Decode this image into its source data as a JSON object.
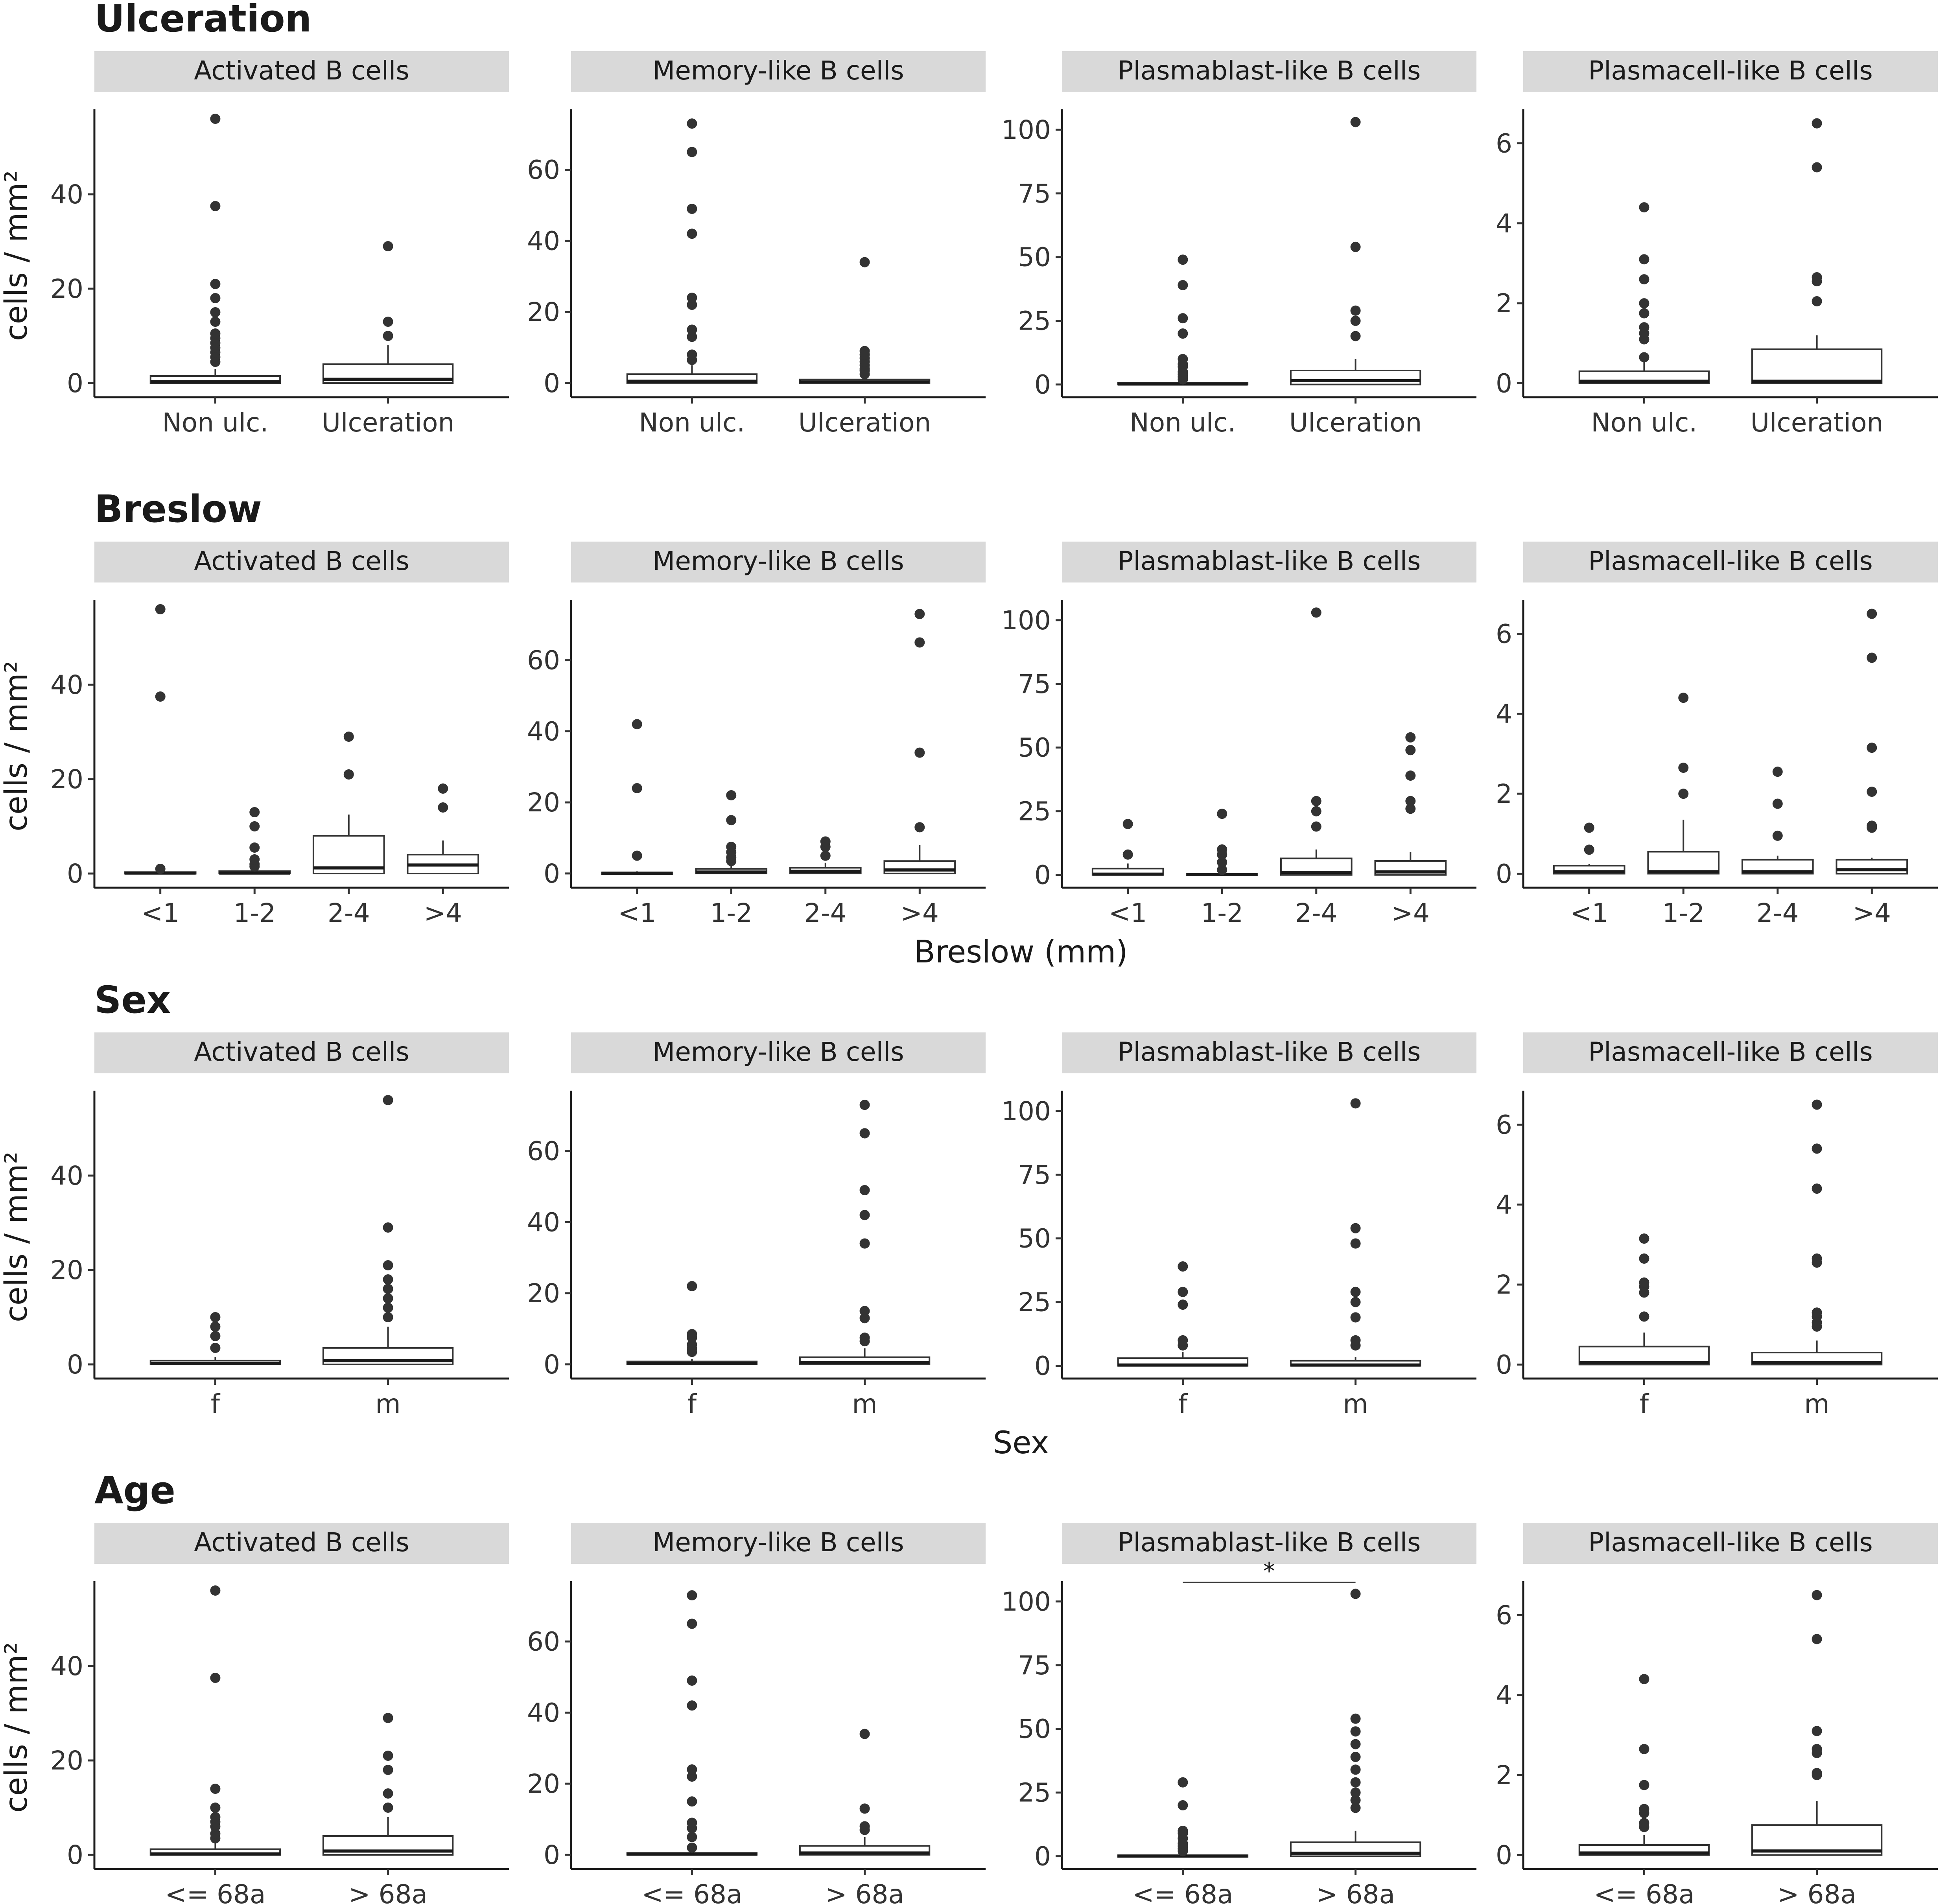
{
  "y_axis_title": "cells / mm²",
  "chart_data": [
    {
      "type": "box",
      "title": "Ulceration",
      "xlabel": "",
      "ylabel": "cells / mm²",
      "categories": [
        "Non ulc.",
        "Ulceration"
      ],
      "panels": [
        {
          "label": "Activated B cells",
          "ylim": [
            -3,
            58
          ],
          "yticks": [
            0,
            20,
            40
          ],
          "boxes": [
            {
              "q1": 0,
              "median": 0.3,
              "q3": 1.5,
              "lower": 0,
              "upper": 3,
              "outliers": [
                4.5,
                5.5,
                6.5,
                7.5,
                8.5,
                9.5,
                10.5,
                13,
                15,
                18,
                21,
                37.5,
                56
              ]
            },
            {
              "q1": 0,
              "median": 0.8,
              "q3": 4,
              "lower": 0,
              "upper": 8,
              "outliers": [
                10,
                13,
                29
              ]
            }
          ]
        },
        {
          "label": "Memory-like B cells",
          "ylim": [
            -4,
            77
          ],
          "yticks": [
            0,
            20,
            40,
            60
          ],
          "boxes": [
            {
              "q1": 0,
              "median": 0.5,
              "q3": 2.5,
              "lower": 0,
              "upper": 5,
              "outliers": [
                6.5,
                8,
                13,
                15,
                22,
                24,
                42,
                49,
                65,
                73
              ]
            },
            {
              "q1": 0,
              "median": 0.3,
              "q3": 1,
              "lower": 0,
              "upper": 2,
              "outliers": [
                2.5,
                3.5,
                4,
                5,
                6,
                7,
                8,
                9,
                34
              ]
            }
          ]
        },
        {
          "label": "Plasmablast-like B cells",
          "ylim": [
            -5,
            108
          ],
          "yticks": [
            0,
            25,
            50,
            75,
            100
          ],
          "boxes": [
            {
              "q1": 0,
              "median": 0.2,
              "q3": 0.6,
              "lower": 0,
              "upper": 1.5,
              "outliers": [
                2,
                3,
                4,
                5,
                7,
                8,
                10,
                20,
                26,
                39,
                49
              ]
            },
            {
              "q1": 0,
              "median": 1.5,
              "q3": 5.5,
              "lower": 0,
              "upper": 10,
              "outliers": [
                19,
                25,
                29,
                54,
                103
              ]
            }
          ]
        },
        {
          "label": "Plasmacell-like B cells",
          "ylim": [
            -0.35,
            6.85
          ],
          "yticks": [
            0,
            2,
            4,
            6
          ],
          "boxes": [
            {
              "q1": 0,
              "median": 0.05,
              "q3": 0.3,
              "lower": 0,
              "upper": 0.55,
              "outliers": [
                0.65,
                1.1,
                1.25,
                1.4,
                1.75,
                2,
                2.6,
                3.1,
                4.4
              ]
            },
            {
              "q1": 0,
              "median": 0.05,
              "q3": 0.85,
              "lower": 0,
              "upper": 1.2,
              "outliers": [
                2.05,
                2.55,
                2.65,
                5.4,
                6.5
              ]
            }
          ]
        }
      ]
    },
    {
      "type": "box",
      "title": "Breslow",
      "xlabel": "Breslow (mm)",
      "ylabel": "cells / mm²",
      "categories": [
        "<1",
        "1-2",
        "2-4",
        ">4"
      ],
      "panels": [
        {
          "label": "Activated B cells",
          "ylim": [
            -3,
            58
          ],
          "yticks": [
            0,
            20,
            40
          ],
          "boxes": [
            {
              "q1": 0,
              "median": 0.1,
              "q3": 0.3,
              "lower": 0,
              "upper": 0.6,
              "outliers": [
                1,
                37.5,
                56
              ]
            },
            {
              "q1": 0,
              "median": 0.1,
              "q3": 0.5,
              "lower": 0,
              "upper": 1,
              "outliers": [
                1.5,
                2,
                3,
                5.5,
                10,
                13
              ]
            },
            {
              "q1": 0,
              "median": 1.2,
              "q3": 8,
              "lower": 0,
              "upper": 12.5,
              "outliers": [
                21,
                29
              ]
            },
            {
              "q1": 0,
              "median": 1.8,
              "q3": 4,
              "lower": 0,
              "upper": 7,
              "outliers": [
                14,
                18
              ]
            }
          ]
        },
        {
          "label": "Memory-like B cells",
          "ylim": [
            -4,
            77
          ],
          "yticks": [
            0,
            20,
            40,
            60
          ],
          "boxes": [
            {
              "q1": 0,
              "median": 0.1,
              "q3": 0.3,
              "lower": 0,
              "upper": 0.6,
              "outliers": [
                5,
                24,
                42
              ]
            },
            {
              "q1": 0,
              "median": 0.4,
              "q3": 1.3,
              "lower": 0,
              "upper": 2.5,
              "outliers": [
                3.5,
                4.5,
                6,
                7.5,
                15,
                22
              ]
            },
            {
              "q1": 0,
              "median": 0.6,
              "q3": 1.6,
              "lower": 0,
              "upper": 3,
              "outliers": [
                5,
                7.5,
                9
              ]
            },
            {
              "q1": 0,
              "median": 1,
              "q3": 3.5,
              "lower": 0,
              "upper": 8,
              "outliers": [
                13,
                34,
                65,
                73
              ]
            }
          ]
        },
        {
          "label": "Plasmablast-like B cells",
          "ylim": [
            -5,
            108
          ],
          "yticks": [
            0,
            25,
            50,
            75,
            100
          ],
          "boxes": [
            {
              "q1": 0,
              "median": 0.3,
              "q3": 2.5,
              "lower": 0,
              "upper": 4.5,
              "outliers": [
                8,
                20
              ]
            },
            {
              "q1": 0,
              "median": 0.1,
              "q3": 0.5,
              "lower": 0,
              "upper": 1,
              "outliers": [
                2,
                5,
                8,
                10,
                24
              ]
            },
            {
              "q1": 0,
              "median": 1,
              "q3": 6.5,
              "lower": 0,
              "upper": 10,
              "outliers": [
                19,
                25,
                29,
                103
              ]
            },
            {
              "q1": 0,
              "median": 1.2,
              "q3": 5.5,
              "lower": 0,
              "upper": 9,
              "outliers": [
                26,
                29,
                39,
                49,
                54
              ]
            }
          ]
        },
        {
          "label": "Plasmacell-like B cells",
          "ylim": [
            -0.35,
            6.85
          ],
          "yticks": [
            0,
            2,
            4,
            6
          ],
          "boxes": [
            {
              "q1": 0,
              "median": 0.05,
              "q3": 0.2,
              "lower": 0,
              "upper": 0.25,
              "outliers": [
                0.6,
                1.15
              ]
            },
            {
              "q1": 0,
              "median": 0.05,
              "q3": 0.55,
              "lower": 0,
              "upper": 1.35,
              "outliers": [
                2,
                2.65,
                4.4
              ]
            },
            {
              "q1": 0,
              "median": 0.05,
              "q3": 0.35,
              "lower": 0,
              "upper": 0.45,
              "outliers": [
                0.95,
                1.75,
                2.55
              ]
            },
            {
              "q1": 0,
              "median": 0.1,
              "q3": 0.35,
              "lower": 0,
              "upper": 0.4,
              "outliers": [
                1.15,
                1.2,
                2.05,
                3.15,
                5.4,
                6.5
              ]
            }
          ]
        }
      ]
    },
    {
      "type": "box",
      "title": "Sex",
      "xlabel": "Sex",
      "ylabel": "cells / mm²",
      "categories": [
        "f",
        "m"
      ],
      "panels": [
        {
          "label": "Activated B cells",
          "ylim": [
            -3,
            58
          ],
          "yticks": [
            0,
            20,
            40
          ],
          "boxes": [
            {
              "q1": 0,
              "median": 0.2,
              "q3": 0.8,
              "lower": 0,
              "upper": 1.5,
              "outliers": [
                3.5,
                6,
                8,
                10
              ]
            },
            {
              "q1": 0,
              "median": 0.8,
              "q3": 3.5,
              "lower": 0,
              "upper": 8,
              "outliers": [
                10,
                12,
                14,
                16,
                18,
                21,
                29,
                56
              ]
            }
          ]
        },
        {
          "label": "Memory-like B cells",
          "ylim": [
            -4,
            77
          ],
          "yticks": [
            0,
            20,
            40,
            60
          ],
          "boxes": [
            {
              "q1": 0,
              "median": 0.2,
              "q3": 0.8,
              "lower": 0,
              "upper": 1.5,
              "outliers": [
                3.5,
                4.5,
                5.5,
                7.5,
                8.5,
                22
              ]
            },
            {
              "q1": 0,
              "median": 0.5,
              "q3": 2,
              "lower": 0,
              "upper": 4.5,
              "outliers": [
                6.5,
                7.5,
                13,
                15,
                34,
                42,
                49,
                65,
                73
              ]
            }
          ]
        },
        {
          "label": "Plasmablast-like B cells",
          "ylim": [
            -5,
            108
          ],
          "yticks": [
            0,
            25,
            50,
            75,
            100
          ],
          "boxes": [
            {
              "q1": 0,
              "median": 0.3,
              "q3": 3,
              "lower": 0,
              "upper": 5.5,
              "outliers": [
                8,
                10,
                24,
                29,
                39
              ]
            },
            {
              "q1": 0,
              "median": 0.3,
              "q3": 2,
              "lower": 0,
              "upper": 3.5,
              "outliers": [
                8,
                10,
                19,
                25,
                29,
                48,
                54,
                103
              ]
            }
          ]
        },
        {
          "label": "Plasmacell-like B cells",
          "ylim": [
            -0.35,
            6.85
          ],
          "yticks": [
            0,
            2,
            4,
            6
          ],
          "boxes": [
            {
              "q1": 0,
              "median": 0.05,
              "q3": 0.45,
              "lower": 0,
              "upper": 0.8,
              "outliers": [
                1.2,
                1.8,
                1.95,
                2.05,
                2.65,
                3.15
              ]
            },
            {
              "q1": 0,
              "median": 0.05,
              "q3": 0.3,
              "lower": 0,
              "upper": 0.6,
              "outliers": [
                0.95,
                1.05,
                1.2,
                1.3,
                2.55,
                2.65,
                4.4,
                5.4,
                6.5
              ]
            }
          ]
        }
      ]
    },
    {
      "type": "box",
      "title": "Age",
      "xlabel": "",
      "ylabel": "cells / mm²",
      "categories": [
        "<= 68a",
        "> 68a"
      ],
      "panels": [
        {
          "label": "Activated B cells",
          "ylim": [
            -3,
            58
          ],
          "yticks": [
            0,
            20,
            40
          ],
          "boxes": [
            {
              "q1": 0,
              "median": 0.2,
              "q3": 1.2,
              "lower": 0,
              "upper": 3,
              "outliers": [
                3.5,
                4.5,
                6,
                7,
                8,
                10,
                14,
                37.5,
                56
              ]
            },
            {
              "q1": 0,
              "median": 0.8,
              "q3": 4,
              "lower": 0,
              "upper": 8,
              "outliers": [
                10,
                13,
                18,
                21,
                29
              ]
            }
          ]
        },
        {
          "label": "Memory-like B cells",
          "ylim": [
            -4,
            77
          ],
          "yticks": [
            0,
            20,
            40,
            60
          ],
          "boxes": [
            {
              "q1": 0,
              "median": 0.2,
              "q3": 0.5,
              "lower": 0,
              "upper": 1,
              "outliers": [
                2,
                5,
                7.5,
                9,
                15,
                22,
                24,
                42,
                49,
                65,
                73
              ]
            },
            {
              "q1": 0,
              "median": 0.5,
              "q3": 2.5,
              "lower": 0,
              "upper": 5,
              "outliers": [
                7,
                8,
                13,
                34
              ]
            }
          ]
        },
        {
          "label": "Plasmablast-like B cells",
          "ylim": [
            -5,
            108
          ],
          "yticks": [
            0,
            25,
            50,
            75,
            100
          ],
          "significance": {
            "label": "*",
            "value": 107.5
          },
          "boxes": [
            {
              "q1": 0,
              "median": 0.1,
              "q3": 0.4,
              "lower": 0,
              "upper": 1,
              "outliers": [
                2,
                3,
                4,
                5,
                7,
                9,
                10,
                20,
                29
              ]
            },
            {
              "q1": 0,
              "median": 1.2,
              "q3": 5.5,
              "lower": 0,
              "upper": 10,
              "outliers": [
                19,
                22,
                25,
                29,
                34,
                39,
                44,
                49,
                54,
                103
              ]
            }
          ]
        },
        {
          "label": "Plasmacell-like B cells",
          "ylim": [
            -0.35,
            6.85
          ],
          "yticks": [
            0,
            2,
            4,
            6
          ],
          "boxes": [
            {
              "q1": 0,
              "median": 0.05,
              "q3": 0.25,
              "lower": 0,
              "upper": 0.5,
              "outliers": [
                0.7,
                0.8,
                1.05,
                1.15,
                1.75,
                2.65,
                4.4
              ]
            },
            {
              "q1": 0,
              "median": 0.1,
              "q3": 0.75,
              "lower": 0,
              "upper": 1.35,
              "outliers": [
                2,
                2.05,
                2.55,
                2.65,
                3.1,
                5.4,
                6.5
              ]
            }
          ]
        }
      ]
    }
  ]
}
